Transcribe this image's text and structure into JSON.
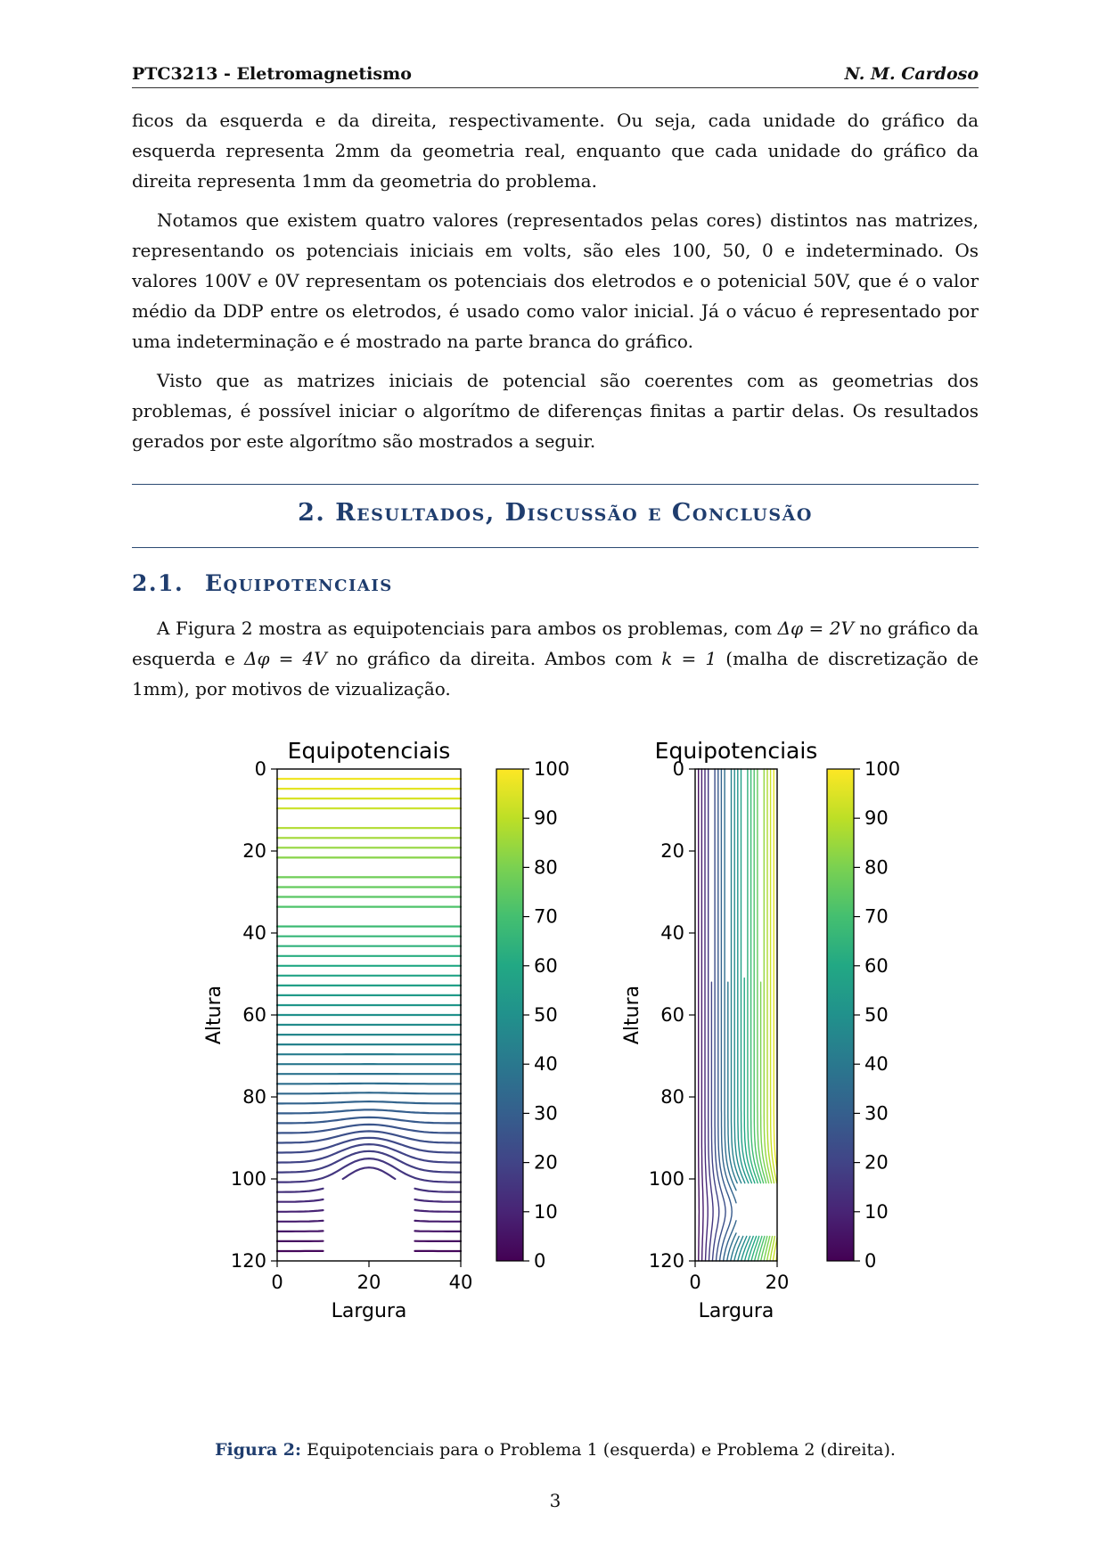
{
  "header": {
    "course": "PTC3213 - Eletromagnetismo",
    "author": "N. M. Cardoso"
  },
  "paragraphs": {
    "p1": "ficos da esquerda e da direita, respectivamente. Ou seja, cada unidade do gráfico da esquerda representa 2mm da geometria real, enquanto que cada unidade do gráfico da direita representa 1mm da geometria do problema.",
    "p2": "Notamos que existem quatro valores (representados pelas cores) distintos nas matrizes, representando os potenciais iniciais em volts, são eles 100, 50, 0 e indeterminado. Os valores 100V e 0V representam os potenciais dos eletrodos e o potenicial 50V, que é o valor médio da DDP entre os eletrodos, é usado como valor inicial. Já o vácuo é representado por uma indeterminação e é mostrado na parte branca do gráfico.",
    "p3": "Visto que as matrizes iniciais de potencial são coerentes com as geometrias dos problemas, é possível iniciar o algorítmo de diferenças finitas a partir delas. Os resultados gerados por este algorítmo são mostrados a seguir."
  },
  "section": {
    "title": "2. Resultados, Discussão e Conclusão"
  },
  "subsection": {
    "number": "2.1.",
    "title": "Equipotenciais",
    "text_a": "A Figura 2 mostra as equipotenciais para ambos os problemas, com ",
    "delta1": "Δφ = 2V",
    "text_b": " no gráfico da esquerda e ",
    "delta2": "Δφ = 4V",
    "text_c": " no gráfico da direita. Ambos com ",
    "k_eq": "k = 1",
    "text_d": " (malha de discretização de 1mm), por motivos de vizualização."
  },
  "chart_data": [
    {
      "type": "contour",
      "title": "Equipotenciais",
      "xlabel": "Largura",
      "ylabel": "Altura",
      "xlim": [
        0,
        40
      ],
      "ylim": [
        120,
        0
      ],
      "xticks": [
        0,
        20,
        40
      ],
      "yticks": [
        0,
        20,
        40,
        60,
        80,
        100,
        120
      ],
      "level_step": 2,
      "colormap": "viridis",
      "colorbar": {
        "range": [
          0,
          100
        ],
        "ticks": [
          0,
          10,
          20,
          30,
          40,
          50,
          60,
          70,
          80,
          90,
          100
        ]
      }
    },
    {
      "type": "contour",
      "title": "Equipotenciais",
      "xlabel": "Largura",
      "ylabel": "Altura",
      "xlim": [
        0,
        20
      ],
      "ylim": [
        120,
        0
      ],
      "xticks": [
        0,
        20
      ],
      "yticks": [
        0,
        20,
        40,
        60,
        80,
        100,
        120
      ],
      "level_step": 4,
      "colormap": "viridis",
      "colorbar": {
        "range": [
          0,
          100
        ],
        "ticks": [
          0,
          10,
          20,
          30,
          40,
          50,
          60,
          70,
          80,
          90,
          100
        ]
      }
    }
  ],
  "figure": {
    "label": "Figura 2:",
    "caption": "Equipotenciais para o Problema 1 (esquerda) e Problema 2 (direita)."
  },
  "page_number": "3"
}
